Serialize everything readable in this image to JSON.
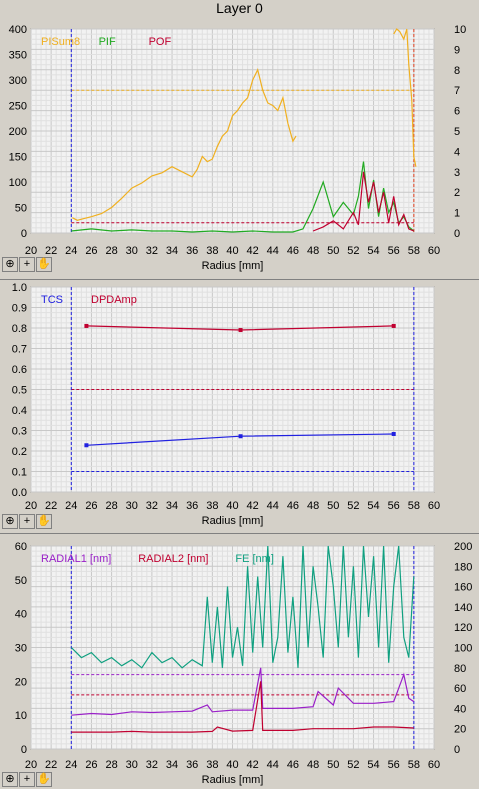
{
  "window_title": "Layer 0",
  "toolbar": {
    "zoom_icon": "zoom-icon",
    "crosshair_icon": "crosshair-icon",
    "pan_icon": "hand-pan-icon"
  },
  "chart_data": [
    {
      "type": "line",
      "xlabel": "Radius [mm]",
      "xlim": [
        20,
        60
      ],
      "x_ticks": [
        "20",
        "22",
        "24",
        "26",
        "28",
        "30",
        "32",
        "34",
        "36",
        "38",
        "40",
        "42",
        "44",
        "46",
        "48",
        "50",
        "52",
        "54",
        "56",
        "58",
        "60"
      ],
      "ylim_left": [
        0,
        400
      ],
      "y_ticks_left": [
        "0",
        "50",
        "100",
        "150",
        "200",
        "250",
        "300",
        "350",
        "400"
      ],
      "ylim_right": [
        0,
        10
      ],
      "y_ticks_right": [
        "0",
        "1",
        "2",
        "3",
        "4",
        "5",
        "6",
        "7",
        "8",
        "9",
        "10"
      ],
      "grid": true,
      "series": [
        {
          "name": "PISum8",
          "axis": "left",
          "color": "#f0b020",
          "x": [
            24.1,
            24.6,
            25.2,
            26.0,
            27.0,
            28.0,
            29.0,
            30.0,
            31.0,
            32.0,
            33.0,
            34.0,
            35.0,
            36.0,
            36.5,
            37.0,
            37.5,
            38.0,
            38.5,
            39.0,
            39.5,
            40.0,
            40.5,
            41.0,
            41.5,
            42.0,
            42.5,
            43.0,
            43.5,
            44.0,
            44.5,
            45.0,
            45.5,
            46.0,
            46.3
          ],
          "y": [
            30,
            25,
            28,
            32,
            38,
            50,
            68,
            88,
            98,
            112,
            118,
            130,
            120,
            110,
            125,
            150,
            140,
            145,
            170,
            190,
            200,
            230,
            240,
            255,
            265,
            300,
            320,
            280,
            255,
            250,
            240,
            265,
            215,
            180,
            190
          ]
        },
        {
          "name": "PISum8",
          "axis": "left",
          "color": "#f0b020",
          "x": [
            56.0,
            56.3,
            56.6,
            57.0,
            57.3,
            57.5,
            57.8,
            58.0,
            58.2
          ],
          "y": [
            390,
            400,
            395,
            380,
            400,
            330,
            260,
            150,
            130
          ]
        },
        {
          "name": "PIF",
          "axis": "right",
          "color": "#22aa22",
          "x": [
            24.0,
            26.0,
            28.0,
            30.0,
            32.0,
            34.0,
            36.0,
            38.0,
            40.0,
            42.0,
            44.0,
            46.0,
            47.0,
            48.0,
            49.0,
            50.0,
            51.0,
            52.0,
            52.5,
            53.0,
            53.5,
            54.0,
            54.5,
            55.0,
            55.5,
            56.0,
            56.5,
            57.0,
            57.5,
            58.0
          ],
          "y": [
            0.1,
            0.2,
            0.1,
            0.15,
            0.1,
            0.1,
            0.05,
            0.1,
            0.05,
            0.1,
            0.05,
            0.05,
            0.2,
            1.2,
            2.5,
            0.8,
            1.5,
            0.9,
            1.8,
            3.5,
            1.2,
            2.6,
            0.8,
            2.2,
            1.0,
            1.5,
            0.5,
            0.8,
            0.3,
            0.1
          ]
        },
        {
          "name": "POF",
          "axis": "right",
          "color": "#c00030",
          "x": [
            48.0,
            49.0,
            50.0,
            51.0,
            52.0,
            52.5,
            53.0,
            53.5,
            54.0,
            54.5,
            55.0,
            55.5,
            56.0,
            56.5,
            57.0,
            57.5,
            58.0
          ],
          "y": [
            0.1,
            0.3,
            0.6,
            0.2,
            1.0,
            0.4,
            3.0,
            1.5,
            2.5,
            1.0,
            2.0,
            0.5,
            1.8,
            0.4,
            0.9,
            0.2,
            0.1
          ]
        }
      ],
      "thresholds": [
        {
          "value": 280,
          "axis": "left",
          "color": "#f0b020"
        },
        {
          "value": 20,
          "axis": "left",
          "color": "#c00030"
        }
      ],
      "vlines": [
        {
          "x": 24,
          "color": "#2020e0"
        },
        {
          "x": 58,
          "color": "#e04020"
        }
      ]
    },
    {
      "type": "line",
      "xlabel": "Radius [mm]",
      "xlim": [
        20,
        60
      ],
      "x_ticks": [
        "20",
        "22",
        "24",
        "26",
        "28",
        "30",
        "32",
        "34",
        "36",
        "38",
        "40",
        "42",
        "44",
        "46",
        "48",
        "50",
        "52",
        "54",
        "56",
        "58",
        "60"
      ],
      "ylim_left": [
        0,
        1
      ],
      "y_ticks_left": [
        "0.0",
        "0.1",
        "0.2",
        "0.3",
        "0.4",
        "0.5",
        "0.6",
        "0.7",
        "0.8",
        "0.9",
        "1.0"
      ],
      "grid": true,
      "series": [
        {
          "name": "TCS",
          "axis": "left",
          "color": "#2020e0",
          "markers": true,
          "x": [
            25.5,
            40.8,
            56.0
          ],
          "y": [
            0.228,
            0.272,
            0.283
          ]
        },
        {
          "name": "DPDAmp",
          "axis": "left",
          "color": "#c00030",
          "markers": true,
          "x": [
            25.5,
            40.8,
            56.0
          ],
          "y": [
            0.81,
            0.79,
            0.81
          ]
        }
      ],
      "thresholds": [
        {
          "value": 0.5,
          "axis": "left",
          "color": "#c00030"
        },
        {
          "value": 0.1,
          "axis": "left",
          "color": "#2020e0"
        }
      ],
      "vlines": [
        {
          "x": 24,
          "color": "#2020e0"
        },
        {
          "x": 58,
          "color": "#2020e0"
        }
      ]
    },
    {
      "type": "line",
      "xlabel": "Radius [mm]",
      "xlim": [
        20,
        60
      ],
      "x_ticks": [
        "20",
        "22",
        "24",
        "26",
        "28",
        "30",
        "32",
        "34",
        "36",
        "38",
        "40",
        "42",
        "44",
        "46",
        "48",
        "50",
        "52",
        "54",
        "56",
        "58",
        "60"
      ],
      "ylim_left": [
        0,
        60
      ],
      "y_ticks_left": [
        "0",
        "10",
        "20",
        "30",
        "40",
        "50",
        "60"
      ],
      "ylim_right": [
        0,
        200
      ],
      "y_ticks_right": [
        "0",
        "20",
        "40",
        "60",
        "80",
        "100",
        "120",
        "140",
        "160",
        "180",
        "200"
      ],
      "grid": true,
      "series": [
        {
          "name": "RADIAL1 [nm]",
          "axis": "left",
          "color": "#9a20c8",
          "x": [
            24,
            26,
            28,
            30,
            32,
            34,
            36,
            37.5,
            38,
            40,
            42,
            42.8,
            43,
            44,
            46,
            48,
            48.5,
            50,
            50.5,
            52,
            54,
            56,
            57,
            57.5,
            58
          ],
          "y": [
            10,
            10.5,
            10.2,
            11,
            10.8,
            11,
            11.2,
            13,
            11,
            11.5,
            11.5,
            24,
            12,
            12,
            12,
            12.5,
            17,
            13,
            18,
            13.5,
            13.5,
            14,
            22,
            15,
            14
          ]
        },
        {
          "name": "RADIAL2 [nm]",
          "axis": "left",
          "color": "#c00030",
          "x": [
            24,
            26,
            28,
            30,
            32,
            34,
            36,
            38,
            38.5,
            40,
            42,
            42.8,
            43,
            44,
            46,
            48,
            50,
            52,
            54,
            56,
            58
          ],
          "y": [
            5,
            5,
            5,
            5.2,
            5,
            5,
            5,
            5.2,
            6.5,
            5.3,
            5.5,
            20,
            5.5,
            5.5,
            5.5,
            6,
            6,
            6,
            6.5,
            6.5,
            6.2
          ]
        },
        {
          "name": "FE [nm]",
          "axis": "right",
          "color": "#10a080",
          "x": [
            24,
            25,
            26,
            27,
            28,
            29,
            30,
            31,
            32,
            33,
            34,
            35,
            36,
            37,
            37.5,
            38,
            38.5,
            39,
            39.5,
            40,
            40.5,
            41,
            41.5,
            42,
            42.5,
            43,
            43.5,
            44,
            44.5,
            45,
            45.5,
            46,
            46.5,
            47,
            47.5,
            48,
            48.5,
            49,
            49.5,
            50,
            50.5,
            51,
            51.5,
            52,
            52.5,
            53,
            53.5,
            54,
            54.5,
            55,
            55.5,
            56,
            56.5,
            57,
            57.5,
            58
          ],
          "y": [
            100,
            90,
            95,
            85,
            90,
            82,
            88,
            80,
            95,
            85,
            90,
            80,
            88,
            82,
            150,
            85,
            140,
            80,
            160,
            90,
            120,
            82,
            180,
            95,
            170,
            100,
            200,
            85,
            110,
            190,
            95,
            150,
            80,
            200,
            100,
            180,
            140,
            90,
            200,
            160,
            100,
            200,
            110,
            180,
            90,
            200,
            130,
            190,
            100,
            200,
            85,
            160,
            200,
            110,
            90,
            170
          ]
        }
      ],
      "thresholds": [
        {
          "value": 22,
          "axis": "left",
          "color": "#9a20c8"
        },
        {
          "value": 16,
          "axis": "left",
          "color": "#c00030"
        }
      ],
      "vlines": [
        {
          "x": 24,
          "color": "#2020e0"
        },
        {
          "x": 58,
          "color": "#2020e0"
        }
      ]
    }
  ]
}
